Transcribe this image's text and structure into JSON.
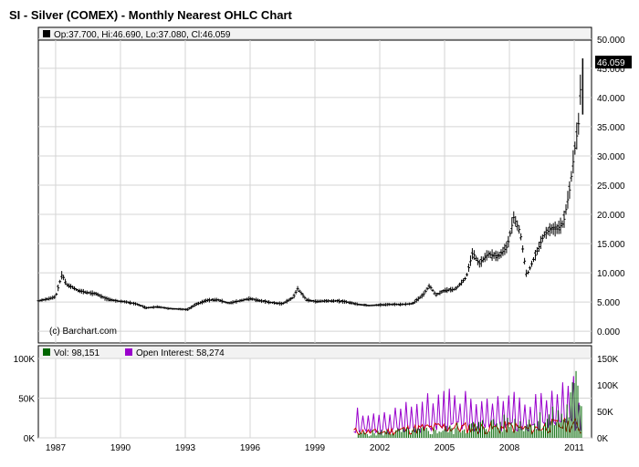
{
  "title": "SI - Silver (COMEX) - Monthly Nearest OHLC Chart",
  "price_legend": "Op:37.700, Hi:46.690, Lo:37.080, Cl:46.059",
  "volume_legend": "Vol: 98,151",
  "oi_legend": "Open Interest: 58,274",
  "watermark": "(c) Barchart.com",
  "last_price_label": "46.059",
  "colors": {
    "price": "#000000",
    "volume": "#006600",
    "open_interest": "#9900cc",
    "oi_fill": "#cc0000",
    "grid": "#d4d4d4",
    "highlight_bg": "#000000"
  },
  "chart_data": [
    {
      "type": "ohlc",
      "title": "SI - Silver (COMEX) - Monthly Nearest OHLC Chart",
      "x_ticks": [
        "1987",
        "1990",
        "1993",
        "1996",
        "1999",
        "2002",
        "2005",
        "2008",
        "2011"
      ],
      "x_range": [
        1986.2,
        2011.8
      ],
      "y_ticks": [
        "0.000",
        "5.000",
        "10.000",
        "15.000",
        "20.000",
        "25.000",
        "30.000",
        "35.000",
        "40.000",
        "45.000",
        "50.000"
      ],
      "y_range": [
        -2,
        52
      ],
      "grid": true,
      "last": {
        "open": 37.7,
        "high": 46.69,
        "low": 37.08,
        "close": 46.059
      },
      "points": [
        [
          1986.2,
          5.2
        ],
        [
          1986.6,
          5.5
        ],
        [
          1987.0,
          5.9
        ],
        [
          1987.3,
          9.8
        ],
        [
          1987.5,
          8.0
        ],
        [
          1987.8,
          7.5
        ],
        [
          1988.0,
          7.0
        ],
        [
          1988.5,
          6.6
        ],
        [
          1988.9,
          6.4
        ],
        [
          1989.3,
          5.6
        ],
        [
          1989.8,
          5.2
        ],
        [
          1990.3,
          5.0
        ],
        [
          1990.8,
          4.6
        ],
        [
          1991.2,
          4.0
        ],
        [
          1991.7,
          4.2
        ],
        [
          1992.2,
          3.9
        ],
        [
          1992.7,
          3.8
        ],
        [
          1993.1,
          3.7
        ],
        [
          1993.5,
          4.6
        ],
        [
          1994.0,
          5.3
        ],
        [
          1994.5,
          5.4
        ],
        [
          1995.0,
          4.8
        ],
        [
          1995.5,
          5.2
        ],
        [
          1996.0,
          5.6
        ],
        [
          1996.5,
          5.2
        ],
        [
          1997.0,
          4.9
        ],
        [
          1997.5,
          4.7
        ],
        [
          1998.0,
          5.8
        ],
        [
          1998.2,
          7.3
        ],
        [
          1998.6,
          5.4
        ],
        [
          1999.0,
          5.1
        ],
        [
          1999.5,
          5.2
        ],
        [
          2000.0,
          5.2
        ],
        [
          2000.5,
          5.0
        ],
        [
          2001.0,
          4.6
        ],
        [
          2001.5,
          4.4
        ],
        [
          2002.0,
          4.5
        ],
        [
          2002.5,
          4.6
        ],
        [
          2003.0,
          4.6
        ],
        [
          2003.5,
          4.7
        ],
        [
          2004.0,
          6.2
        ],
        [
          2004.3,
          7.8
        ],
        [
          2004.6,
          6.2
        ],
        [
          2005.0,
          7.0
        ],
        [
          2005.5,
          7.2
        ],
        [
          2006.0,
          9.2
        ],
        [
          2006.3,
          13.5
        ],
        [
          2006.6,
          11.5
        ],
        [
          2007.0,
          13.2
        ],
        [
          2007.5,
          12.8
        ],
        [
          2007.9,
          14.5
        ],
        [
          2008.2,
          19.5
        ],
        [
          2008.5,
          17.0
        ],
        [
          2008.8,
          9.5
        ],
        [
          2009.2,
          13.0
        ],
        [
          2009.6,
          16.5
        ],
        [
          2009.9,
          17.5
        ],
        [
          2010.2,
          17.5
        ],
        [
          2010.5,
          18.5
        ],
        [
          2010.8,
          24.5
        ],
        [
          2011.0,
          30.5
        ],
        [
          2011.2,
          35.5
        ],
        [
          2011.35,
          46.0
        ]
      ]
    },
    {
      "type": "bar",
      "title": "",
      "series": [
        {
          "name": "Vol",
          "last": 98151
        },
        {
          "name": "Open Interest",
          "last": 58274
        }
      ],
      "y_left_ticks": [
        "0K",
        "50K",
        "100K"
      ],
      "y_left_range": [
        0,
        100000
      ],
      "y_right_ticks": [
        "0K",
        "50K",
        "100K",
        "150K"
      ],
      "y_right_range": [
        0,
        150000
      ],
      "oi_points": [
        [
          2000.8,
          50000
        ],
        [
          2002.0,
          40000
        ],
        [
          2003.0,
          60000
        ],
        [
          2004.0,
          70000
        ],
        [
          2005.0,
          80000
        ],
        [
          2006.0,
          75000
        ],
        [
          2007.0,
          70000
        ],
        [
          2008.0,
          80000
        ],
        [
          2009.0,
          65000
        ],
        [
          2010.0,
          90000
        ],
        [
          2011.0,
          100000
        ],
        [
          2011.3,
          58274
        ]
      ],
      "vol_points": [
        [
          2001.0,
          8000
        ],
        [
          2003.0,
          12000
        ],
        [
          2005.0,
          15000
        ],
        [
          2007.0,
          25000
        ],
        [
          2009.0,
          30000
        ],
        [
          2010.5,
          40000
        ],
        [
          2011.0,
          80000
        ],
        [
          2011.35,
          98151
        ]
      ]
    }
  ]
}
